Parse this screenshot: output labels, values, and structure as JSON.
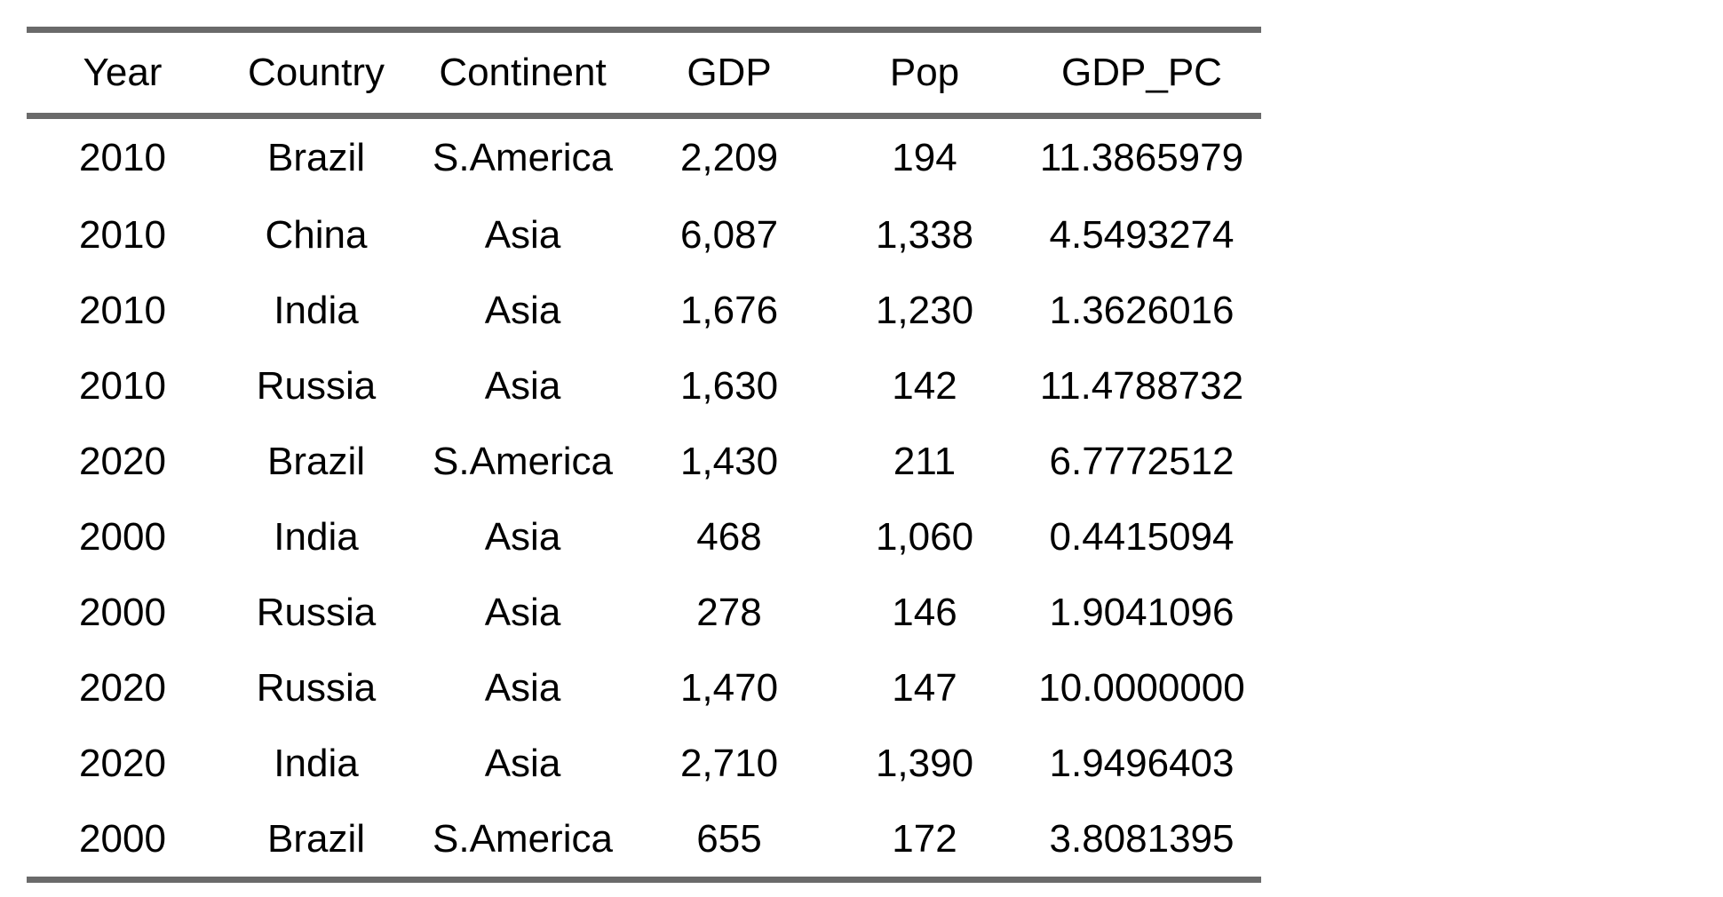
{
  "chart_data": {
    "type": "table",
    "columns": [
      "Year",
      "Country",
      "Continent",
      "GDP",
      "Pop",
      "GDP_PC"
    ],
    "rows": [
      [
        "2010",
        "Brazil",
        "S.America",
        "2,209",
        "194",
        "11.3865979"
      ],
      [
        "2010",
        "China",
        "Asia",
        "6,087",
        "1,338",
        "4.5493274"
      ],
      [
        "2010",
        "India",
        "Asia",
        "1,676",
        "1,230",
        "1.3626016"
      ],
      [
        "2010",
        "Russia",
        "Asia",
        "1,630",
        "142",
        "11.4788732"
      ],
      [
        "2020",
        "Brazil",
        "S.America",
        "1,430",
        "211",
        "6.7772512"
      ],
      [
        "2000",
        "India",
        "Asia",
        "468",
        "1,060",
        "0.4415094"
      ],
      [
        "2000",
        "Russia",
        "Asia",
        "278",
        "146",
        "1.9041096"
      ],
      [
        "2020",
        "Russia",
        "Asia",
        "1,470",
        "147",
        "10.0000000"
      ],
      [
        "2020",
        "India",
        "Asia",
        "2,710",
        "1,390",
        "1.9496403"
      ],
      [
        "2000",
        "Brazil",
        "S.America",
        "655",
        "172",
        "3.8081395"
      ]
    ],
    "rule_color": "#6a6a6a"
  }
}
